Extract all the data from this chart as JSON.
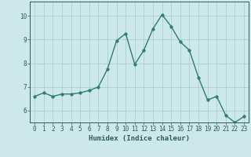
{
  "x": [
    0,
    1,
    2,
    3,
    4,
    5,
    6,
    7,
    8,
    9,
    10,
    11,
    12,
    13,
    14,
    15,
    16,
    17,
    18,
    19,
    20,
    21,
    22,
    23
  ],
  "y": [
    6.6,
    6.75,
    6.6,
    6.7,
    6.7,
    6.75,
    6.85,
    7.0,
    7.75,
    8.95,
    9.25,
    7.95,
    8.55,
    9.45,
    10.05,
    9.55,
    8.9,
    8.55,
    7.4,
    6.45,
    6.6,
    5.8,
    5.5,
    5.75
  ],
  "xlabel": "Humidex (Indice chaleur)",
  "ylabel": "",
  "ylim": [
    5.5,
    10.6
  ],
  "xlim": [
    -0.5,
    23.5
  ],
  "line_color": "#2e7d6e",
  "marker": "o",
  "markersize": 2.5,
  "linewidth": 1.0,
  "bg_color": "#cce8e8",
  "grid_color": "#aacfcf",
  "tick_color": "#2e5a5a",
  "yticks": [
    6,
    7,
    8,
    9,
    10
  ],
  "xticks": [
    0,
    1,
    2,
    3,
    4,
    5,
    6,
    7,
    8,
    9,
    10,
    11,
    12,
    13,
    14,
    15,
    16,
    17,
    18,
    19,
    20,
    21,
    22,
    23
  ],
  "xlabel_fontsize": 6.5,
  "tick_fontsize": 5.5
}
